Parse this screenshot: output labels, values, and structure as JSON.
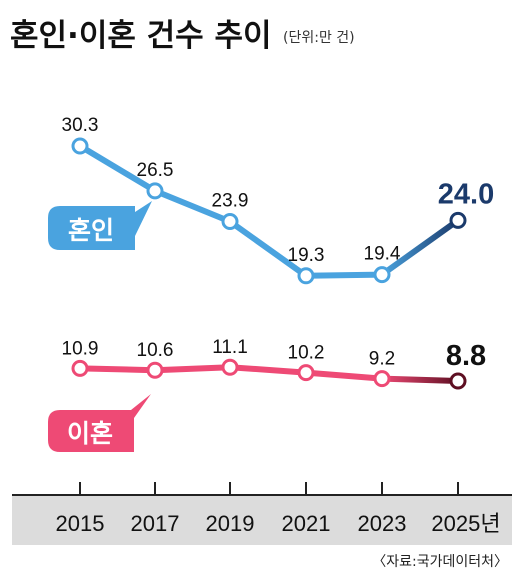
{
  "chart_data": {
    "type": "line",
    "title": "혼인·이혼 건수 추이",
    "unit_note": "(단위:만 건)",
    "source": "〈자료:국가데이터처〉",
    "x": [
      "2015",
      "2017",
      "2019",
      "2021",
      "2023",
      "2025년"
    ],
    "series": [
      {
        "name": "혼인",
        "values": [
          30.3,
          26.5,
          23.9,
          19.3,
          19.4,
          24.0
        ],
        "labels": [
          "30.3",
          "26.5",
          "23.9",
          "19.3",
          "19.4",
          "24.0"
        ],
        "color": "#4aa3df",
        "last_color": "#1b3a6b"
      },
      {
        "name": "이혼",
        "values": [
          10.9,
          10.6,
          11.1,
          10.2,
          9.2,
          8.8
        ],
        "labels": [
          "10.9",
          "10.6",
          "11.1",
          "10.2",
          "9.2",
          "8.8"
        ],
        "color": "#ee4a75",
        "last_color": "#5e0f22"
      }
    ],
    "grid": false,
    "legend": "inline-labels"
  }
}
